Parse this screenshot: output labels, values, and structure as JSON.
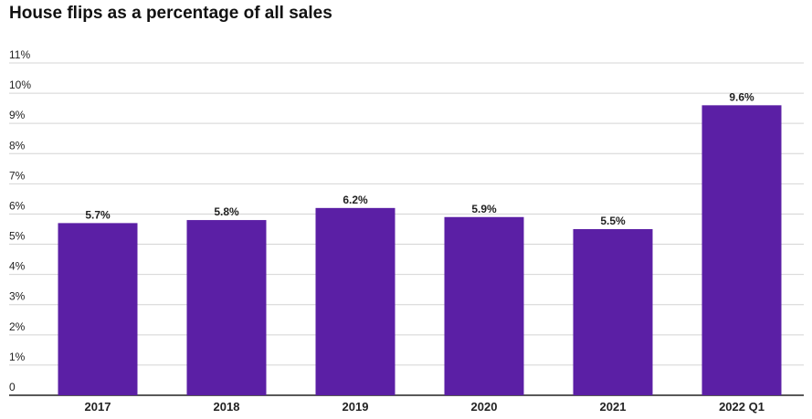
{
  "chart_data": {
    "type": "bar",
    "title": "House flips as a percentage of all sales",
    "categories": [
      "2017",
      "2018",
      "2019",
      "2020",
      "2021",
      "2022 Q1"
    ],
    "values": [
      5.7,
      5.8,
      6.2,
      5.9,
      5.5,
      9.6
    ],
    "data_labels": [
      "5.7%",
      "5.8%",
      "6.2%",
      "5.9%",
      "5.5%",
      "9.6%"
    ],
    "yticks": [
      0,
      1,
      2,
      3,
      4,
      5,
      6,
      7,
      8,
      9,
      10,
      11
    ],
    "ytick_labels": [
      "0",
      "1%",
      "2%",
      "3%",
      "4%",
      "5%",
      "6%",
      "7%",
      "8%",
      "9%",
      "10%",
      "11%"
    ],
    "ylim": [
      0,
      11
    ],
    "grid": true,
    "bar_color": "#5b1fa5"
  }
}
